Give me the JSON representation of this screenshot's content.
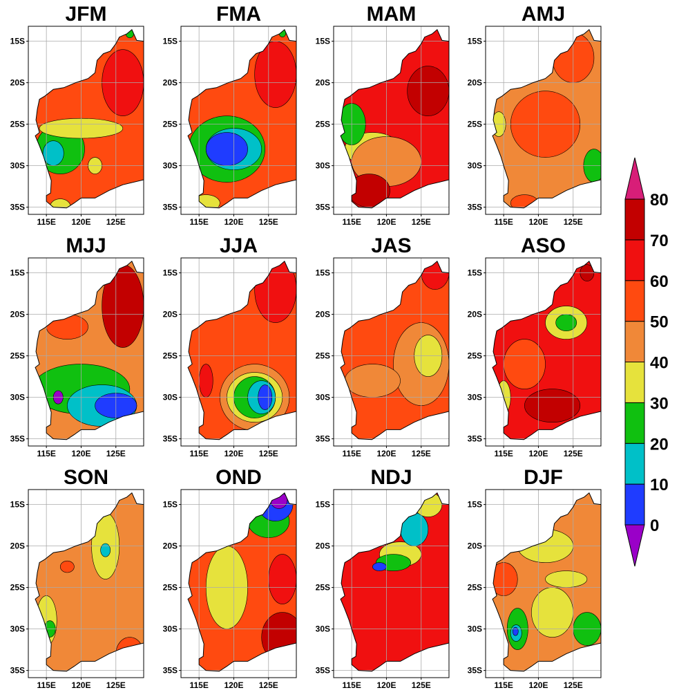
{
  "panels": [
    {
      "title": "JFM"
    },
    {
      "title": "FMA"
    },
    {
      "title": "MAM"
    },
    {
      "title": "AMJ"
    },
    {
      "title": "MJJ"
    },
    {
      "title": "JJA"
    },
    {
      "title": "JAS"
    },
    {
      "title": "ASO"
    },
    {
      "title": "SON"
    },
    {
      "title": "OND"
    },
    {
      "title": "NDJ"
    },
    {
      "title": "DJF"
    }
  ],
  "lat_ticks": [
    {
      "value": -15,
      "label": "15S"
    },
    {
      "value": -20,
      "label": "20S"
    },
    {
      "value": -25,
      "label": "25S"
    },
    {
      "value": -30,
      "label": "30S"
    },
    {
      "value": -35,
      "label": "35S"
    }
  ],
  "lon_ticks": [
    {
      "value": 115,
      "label": "115E"
    },
    {
      "value": 120,
      "label": "120E"
    },
    {
      "value": 125,
      "label": "125E"
    }
  ],
  "colorbar": {
    "levels": [
      0,
      10,
      20,
      30,
      40,
      50,
      60,
      70,
      80
    ],
    "colors": [
      "#9a00c8",
      "#1f3cff",
      "#00c0c8",
      "#10c010",
      "#e6e23c",
      "#f08838",
      "#ff4a10",
      "#f01010",
      "#c20000",
      "#d81e78"
    ]
  }
}
